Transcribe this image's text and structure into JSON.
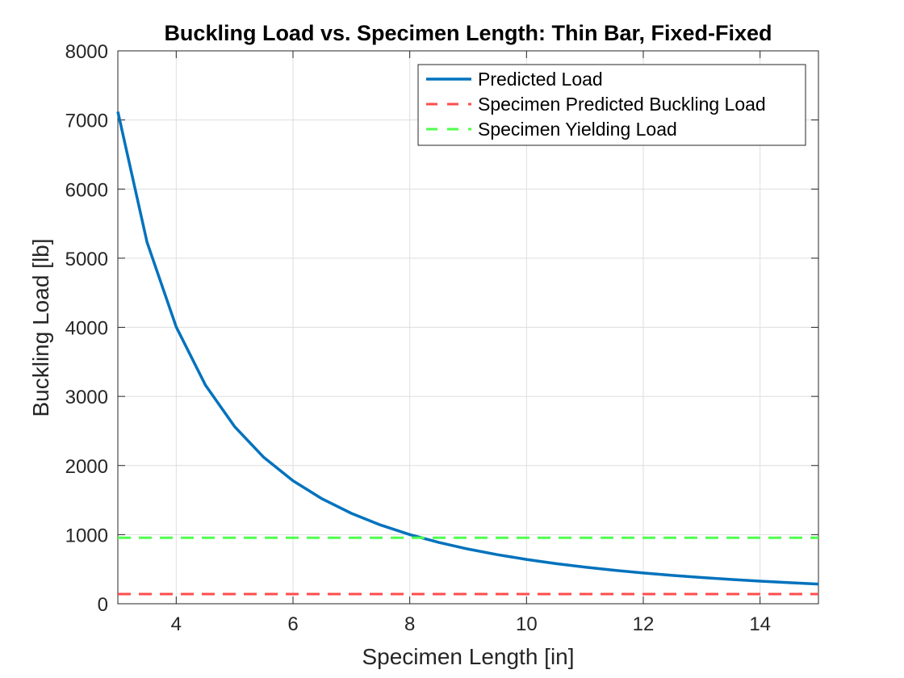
{
  "chart_data": {
    "type": "line",
    "title": "Buckling Load vs. Specimen Length: Thin Bar, Fixed-Fixed",
    "xlabel": "Specimen Length [in]",
    "ylabel": "Buckling Load [lb]",
    "xlim": [
      3,
      15
    ],
    "ylim": [
      0,
      8000
    ],
    "xticks": [
      4,
      6,
      8,
      10,
      12,
      14
    ],
    "yticks": [
      0,
      1000,
      2000,
      3000,
      4000,
      5000,
      6000,
      7000,
      8000
    ],
    "xtick_labels": [
      "4",
      "6",
      "8",
      "10",
      "12",
      "14"
    ],
    "ytick_labels": [
      "0",
      "1000",
      "2000",
      "3000",
      "4000",
      "5000",
      "6000",
      "7000",
      "8000"
    ],
    "grid": true,
    "legend_position": "top-right",
    "series": [
      {
        "name": "Predicted Load",
        "color": "#0072BD",
        "style": "solid",
        "x": [
          3,
          3.5,
          4,
          4.5,
          5,
          5.5,
          6,
          6.5,
          7,
          7.5,
          8,
          8.5,
          9,
          9.5,
          10,
          10.5,
          11,
          11.5,
          12,
          12.5,
          13,
          13.5,
          14,
          14.5,
          15
        ],
        "y": [
          7120,
          5231,
          4005,
          3164,
          2563,
          2118,
          1780,
          1517,
          1308,
          1139,
          1001,
          887,
          791,
          710,
          641,
          581,
          530,
          485,
          445,
          410,
          379,
          352,
          327,
          305,
          285
        ]
      },
      {
        "name": "Specimen Predicted Buckling Load",
        "color": "#FF4D4D",
        "style": "dashed",
        "x": [
          3,
          15
        ],
        "y": [
          140,
          140
        ]
      },
      {
        "name": "Specimen Yielding Load",
        "color": "#4DFF4D",
        "style": "dashed",
        "x": [
          3,
          15
        ],
        "y": [
          955,
          955
        ]
      }
    ]
  }
}
